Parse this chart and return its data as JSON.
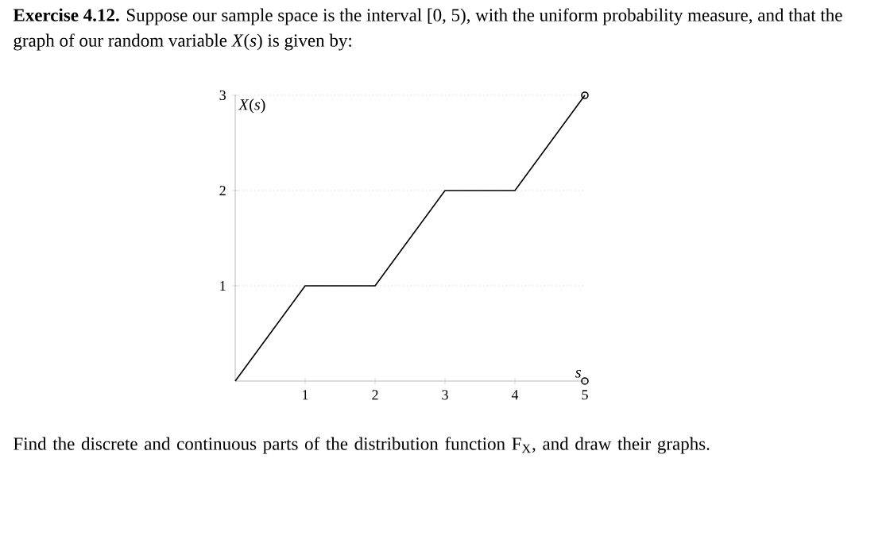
{
  "chart_data": {
    "type": "line",
    "title": "**Exercise 4.12.** Suppose our sample space is the interval [0, 5), with the uniform probability measure, and that the graph of our random variable *X*(*s*) is given by:",
    "annotations": [
      "Find the discrete and continuous parts of the distribution function F$_{X}$, and draw their graphs."
    ],
    "xlabel": "*s*",
    "ylabel": "*X*(*s*)",
    "xlim": [
      0,
      5
    ],
    "ylim": [
      0,
      3
    ],
    "xticks": [
      1,
      2,
      3,
      4,
      5
    ],
    "yticks": [
      1,
      2,
      3
    ],
    "grid": "y",
    "series": [
      {
        "color": "#000000",
        "marker": "none",
        "x": [
          0,
          1,
          2,
          3,
          4,
          5
        ],
        "values": [
          0,
          1,
          1,
          2,
          2,
          3
        ]
      },
      {
        "type": "scatter",
        "color": "#000000",
        "marker": "circle",
        "x": [
          5,
          5
        ],
        "values": [
          3,
          0
        ]
      }
    ]
  }
}
